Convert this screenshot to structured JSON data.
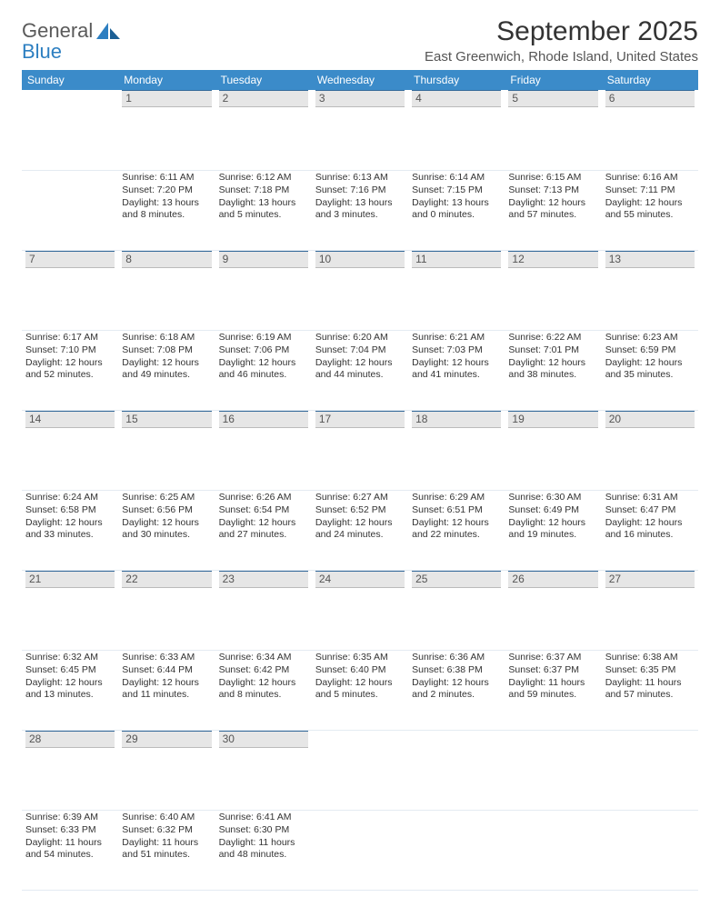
{
  "logo": {
    "line1": "General",
    "line2": "Blue"
  },
  "title": "September 2025",
  "subtitle": "East Greenwich, Rhode Island, United States",
  "header_color": "#3b8bc9",
  "day_headers": [
    "Sunday",
    "Monday",
    "Tuesday",
    "Wednesday",
    "Thursday",
    "Friday",
    "Saturday"
  ],
  "weeks": [
    [
      null,
      {
        "n": "1",
        "sr": "Sunrise: 6:11 AM",
        "ss": "Sunset: 7:20 PM",
        "dl": "Daylight: 13 hours and 8 minutes."
      },
      {
        "n": "2",
        "sr": "Sunrise: 6:12 AM",
        "ss": "Sunset: 7:18 PM",
        "dl": "Daylight: 13 hours and 5 minutes."
      },
      {
        "n": "3",
        "sr": "Sunrise: 6:13 AM",
        "ss": "Sunset: 7:16 PM",
        "dl": "Daylight: 13 hours and 3 minutes."
      },
      {
        "n": "4",
        "sr": "Sunrise: 6:14 AM",
        "ss": "Sunset: 7:15 PM",
        "dl": "Daylight: 13 hours and 0 minutes."
      },
      {
        "n": "5",
        "sr": "Sunrise: 6:15 AM",
        "ss": "Sunset: 7:13 PM",
        "dl": "Daylight: 12 hours and 57 minutes."
      },
      {
        "n": "6",
        "sr": "Sunrise: 6:16 AM",
        "ss": "Sunset: 7:11 PM",
        "dl": "Daylight: 12 hours and 55 minutes."
      }
    ],
    [
      {
        "n": "7",
        "sr": "Sunrise: 6:17 AM",
        "ss": "Sunset: 7:10 PM",
        "dl": "Daylight: 12 hours and 52 minutes."
      },
      {
        "n": "8",
        "sr": "Sunrise: 6:18 AM",
        "ss": "Sunset: 7:08 PM",
        "dl": "Daylight: 12 hours and 49 minutes."
      },
      {
        "n": "9",
        "sr": "Sunrise: 6:19 AM",
        "ss": "Sunset: 7:06 PM",
        "dl": "Daylight: 12 hours and 46 minutes."
      },
      {
        "n": "10",
        "sr": "Sunrise: 6:20 AM",
        "ss": "Sunset: 7:04 PM",
        "dl": "Daylight: 12 hours and 44 minutes."
      },
      {
        "n": "11",
        "sr": "Sunrise: 6:21 AM",
        "ss": "Sunset: 7:03 PM",
        "dl": "Daylight: 12 hours and 41 minutes."
      },
      {
        "n": "12",
        "sr": "Sunrise: 6:22 AM",
        "ss": "Sunset: 7:01 PM",
        "dl": "Daylight: 12 hours and 38 minutes."
      },
      {
        "n": "13",
        "sr": "Sunrise: 6:23 AM",
        "ss": "Sunset: 6:59 PM",
        "dl": "Daylight: 12 hours and 35 minutes."
      }
    ],
    [
      {
        "n": "14",
        "sr": "Sunrise: 6:24 AM",
        "ss": "Sunset: 6:58 PM",
        "dl": "Daylight: 12 hours and 33 minutes."
      },
      {
        "n": "15",
        "sr": "Sunrise: 6:25 AM",
        "ss": "Sunset: 6:56 PM",
        "dl": "Daylight: 12 hours and 30 minutes."
      },
      {
        "n": "16",
        "sr": "Sunrise: 6:26 AM",
        "ss": "Sunset: 6:54 PM",
        "dl": "Daylight: 12 hours and 27 minutes."
      },
      {
        "n": "17",
        "sr": "Sunrise: 6:27 AM",
        "ss": "Sunset: 6:52 PM",
        "dl": "Daylight: 12 hours and 24 minutes."
      },
      {
        "n": "18",
        "sr": "Sunrise: 6:29 AM",
        "ss": "Sunset: 6:51 PM",
        "dl": "Daylight: 12 hours and 22 minutes."
      },
      {
        "n": "19",
        "sr": "Sunrise: 6:30 AM",
        "ss": "Sunset: 6:49 PM",
        "dl": "Daylight: 12 hours and 19 minutes."
      },
      {
        "n": "20",
        "sr": "Sunrise: 6:31 AM",
        "ss": "Sunset: 6:47 PM",
        "dl": "Daylight: 12 hours and 16 minutes."
      }
    ],
    [
      {
        "n": "21",
        "sr": "Sunrise: 6:32 AM",
        "ss": "Sunset: 6:45 PM",
        "dl": "Daylight: 12 hours and 13 minutes."
      },
      {
        "n": "22",
        "sr": "Sunrise: 6:33 AM",
        "ss": "Sunset: 6:44 PM",
        "dl": "Daylight: 12 hours and 11 minutes."
      },
      {
        "n": "23",
        "sr": "Sunrise: 6:34 AM",
        "ss": "Sunset: 6:42 PM",
        "dl": "Daylight: 12 hours and 8 minutes."
      },
      {
        "n": "24",
        "sr": "Sunrise: 6:35 AM",
        "ss": "Sunset: 6:40 PM",
        "dl": "Daylight: 12 hours and 5 minutes."
      },
      {
        "n": "25",
        "sr": "Sunrise: 6:36 AM",
        "ss": "Sunset: 6:38 PM",
        "dl": "Daylight: 12 hours and 2 minutes."
      },
      {
        "n": "26",
        "sr": "Sunrise: 6:37 AM",
        "ss": "Sunset: 6:37 PM",
        "dl": "Daylight: 11 hours and 59 minutes."
      },
      {
        "n": "27",
        "sr": "Sunrise: 6:38 AM",
        "ss": "Sunset: 6:35 PM",
        "dl": "Daylight: 11 hours and 57 minutes."
      }
    ],
    [
      {
        "n": "28",
        "sr": "Sunrise: 6:39 AM",
        "ss": "Sunset: 6:33 PM",
        "dl": "Daylight: 11 hours and 54 minutes."
      },
      {
        "n": "29",
        "sr": "Sunrise: 6:40 AM",
        "ss": "Sunset: 6:32 PM",
        "dl": "Daylight: 11 hours and 51 minutes."
      },
      {
        "n": "30",
        "sr": "Sunrise: 6:41 AM",
        "ss": "Sunset: 6:30 PM",
        "dl": "Daylight: 11 hours and 48 minutes."
      },
      null,
      null,
      null,
      null
    ]
  ]
}
